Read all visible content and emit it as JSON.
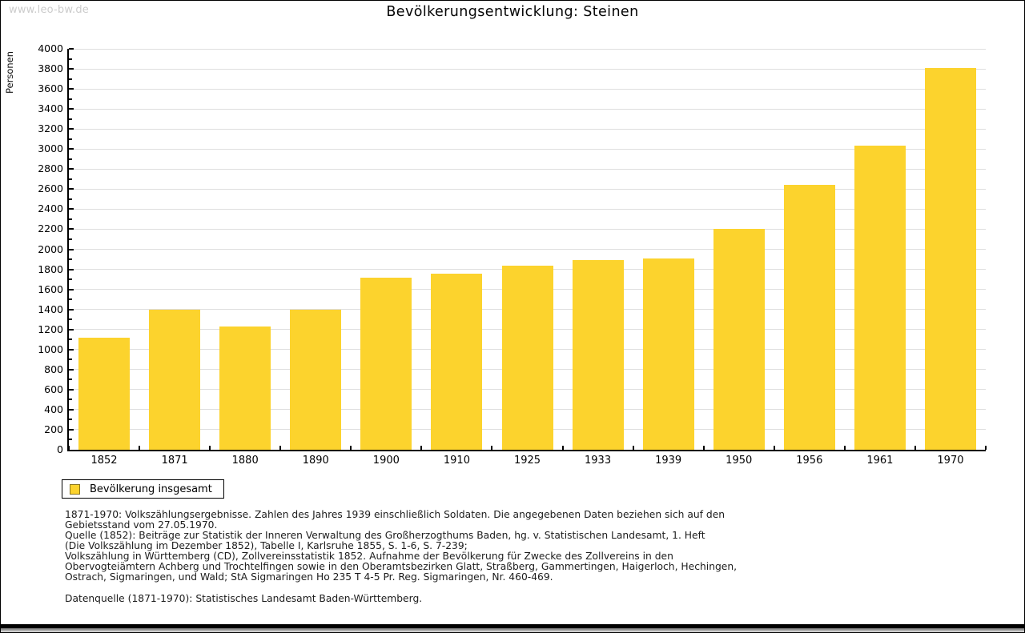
{
  "page": {
    "watermark": "www.leo-bw.de"
  },
  "chart_data": {
    "type": "bar",
    "title": "Bevölkerungsentwicklung: Steinen",
    "categories": [
      "1852",
      "1871",
      "1880",
      "1890",
      "1900",
      "1910",
      "1925",
      "1933",
      "1939",
      "1950",
      "1956",
      "1961",
      "1970"
    ],
    "values": [
      1120,
      1400,
      1230,
      1400,
      1715,
      1760,
      1835,
      1890,
      1905,
      2200,
      2640,
      3035,
      3805
    ],
    "xlabel": "",
    "ylabel": "Personen",
    "ylim": [
      0,
      4000
    ],
    "ytick_step": 200,
    "yminor_step": 100,
    "grid": "horizontal-on",
    "bar_color": "#fcd32d",
    "legend": {
      "label": "Bevölkerung insgesamt",
      "position": "bottom-left",
      "swatch_color": "#fcd32d"
    }
  },
  "footnotes": {
    "lines": [
      "1871-1970: Volkszählungsergebnisse. Zahlen des Jahres 1939 einschließlich Soldaten. Die angegebenen Daten beziehen sich auf den",
      "Gebietsstand vom 27.05.1970.",
      "Quelle (1852): Beiträge zur Statistik der Inneren Verwaltung des Großherzogthums Baden, hg. v. Statistischen Landesamt, 1. Heft",
      "(Die Volkszählung im Dezember 1852), Tabelle I, Karlsruhe 1855, S. 1-6, S. 7-239;",
      "Volkszählung in Württemberg (CD), Zollvereinsstatistik 1852. Aufnahme der Bevölkerung für Zwecke des Zollvereins in den",
      "Obervogteiämtern Achberg und Trochtelfingen sowie in den Oberamtsbezirken Glatt, Straßberg, Gammertingen, Haigerloch, Hechingen,",
      "Ostrach, Sigmaringen, und Wald; StA Sigmaringen Ho 235 T 4-5 Pr. Reg. Sigmaringen, Nr. 460-469."
    ],
    "datasource": "Datenquelle (1871-1970): Statistisches Landesamt Baden-Württemberg."
  }
}
